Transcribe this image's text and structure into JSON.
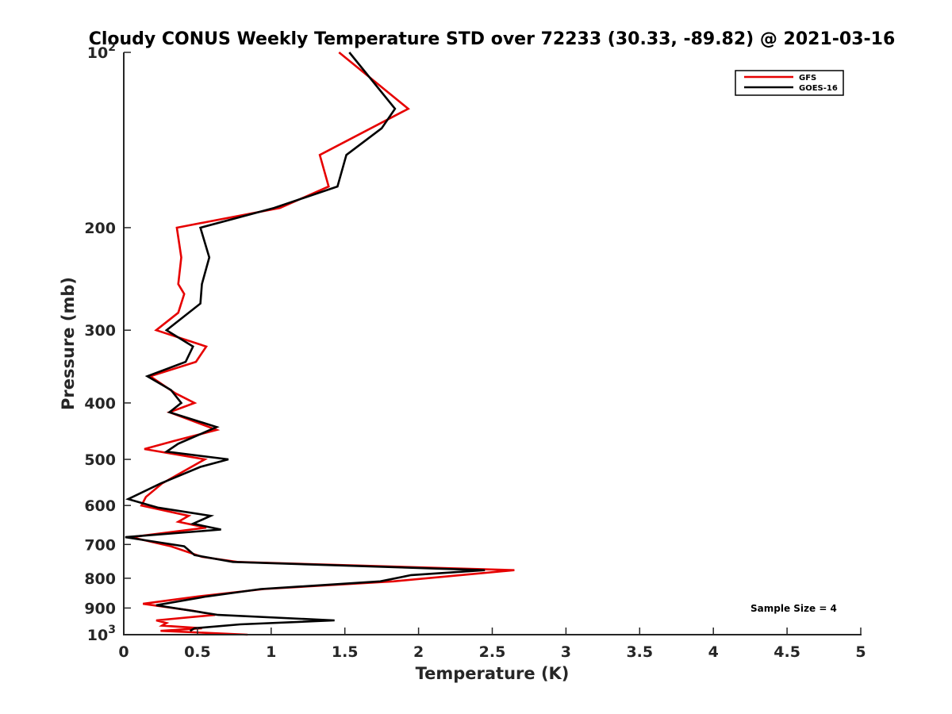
{
  "chart_data": {
    "type": "line",
    "title": "Cloudy CONUS Weekly Temperature STD over 72233 (30.33, -89.82) @ 2021-03-16",
    "xlabel": "Temperature (K)",
    "ylabel": "Pressure (mb)",
    "xlim": [
      0,
      5
    ],
    "ylim": [
      100,
      1000
    ],
    "y_scale": "log",
    "y_reversed": true,
    "x_ticks": [
      0,
      0.5,
      1,
      1.5,
      2,
      2.5,
      3,
      3.5,
      4,
      4.5,
      5
    ],
    "x_tick_labels": [
      "0",
      "0.5",
      "1",
      "1.5",
      "2",
      "2.5",
      "3",
      "3.5",
      "4",
      "4.5",
      "5"
    ],
    "y_ticks": [
      100,
      200,
      300,
      400,
      500,
      600,
      700,
      800,
      900,
      1000
    ],
    "y_tick_labels": [
      "10^2",
      "200",
      "300",
      "400",
      "500",
      "600",
      "700",
      "800",
      "900",
      "10^3"
    ],
    "grid": false,
    "legend_position": "top-right",
    "annotation": "Sample Size = 4",
    "series": [
      {
        "name": "GFS",
        "color": "#e60000",
        "points": [
          [
            1.46,
            100
          ],
          [
            1.93,
            125
          ],
          [
            1.33,
            150
          ],
          [
            1.39,
            170
          ],
          [
            1.06,
            185
          ],
          [
            0.36,
            200
          ],
          [
            0.39,
            225
          ],
          [
            0.37,
            250
          ],
          [
            0.41,
            260
          ],
          [
            0.37,
            280
          ],
          [
            0.22,
            300
          ],
          [
            0.56,
            320
          ],
          [
            0.49,
            340
          ],
          [
            0.18,
            360
          ],
          [
            0.35,
            385
          ],
          [
            0.48,
            400
          ],
          [
            0.31,
            415
          ],
          [
            0.63,
            445
          ],
          [
            0.34,
            465
          ],
          [
            0.14,
            480
          ],
          [
            0.55,
            500
          ],
          [
            0.26,
            550
          ],
          [
            0.15,
            580
          ],
          [
            0.12,
            600
          ],
          [
            0.44,
            625
          ],
          [
            0.37,
            640
          ],
          [
            0.56,
            655
          ],
          [
            0.05,
            680
          ],
          [
            0.32,
            705
          ],
          [
            0.53,
            735
          ],
          [
            0.77,
            750
          ],
          [
            2.65,
            775
          ],
          [
            1.83,
            810
          ],
          [
            0.95,
            835
          ],
          [
            0.5,
            860
          ],
          [
            0.13,
            885
          ],
          [
            0.47,
            910
          ],
          [
            0.62,
            925
          ],
          [
            0.22,
            945
          ],
          [
            0.29,
            955
          ],
          [
            0.26,
            965
          ],
          [
            0.53,
            975
          ],
          [
            0.25,
            985
          ],
          [
            0.84,
            1000
          ]
        ]
      },
      {
        "name": "GOES-16",
        "color": "#000000",
        "points": [
          [
            1.53,
            100
          ],
          [
            1.84,
            125
          ],
          [
            1.75,
            135
          ],
          [
            1.51,
            150
          ],
          [
            1.45,
            170
          ],
          [
            1.02,
            185
          ],
          [
            0.52,
            200
          ],
          [
            0.58,
            225
          ],
          [
            0.53,
            250
          ],
          [
            0.52,
            270
          ],
          [
            0.29,
            300
          ],
          [
            0.47,
            320
          ],
          [
            0.42,
            340
          ],
          [
            0.16,
            360
          ],
          [
            0.32,
            380
          ],
          [
            0.39,
            400
          ],
          [
            0.31,
            415
          ],
          [
            0.63,
            440
          ],
          [
            0.37,
            470
          ],
          [
            0.29,
            485
          ],
          [
            0.71,
            500
          ],
          [
            0.52,
            515
          ],
          [
            0.25,
            550
          ],
          [
            0.03,
            585
          ],
          [
            0.23,
            605
          ],
          [
            0.59,
            625
          ],
          [
            0.47,
            645
          ],
          [
            0.66,
            660
          ],
          [
            0.01,
            680
          ],
          [
            0.41,
            705
          ],
          [
            0.48,
            730
          ],
          [
            0.74,
            750
          ],
          [
            2.45,
            775
          ],
          [
            1.95,
            790
          ],
          [
            1.74,
            810
          ],
          [
            0.93,
            835
          ],
          [
            0.56,
            860
          ],
          [
            0.22,
            890
          ],
          [
            0.64,
            925
          ],
          [
            1.43,
            945
          ],
          [
            0.79,
            960
          ],
          [
            0.48,
            975
          ],
          [
            0.45,
            985
          ]
        ]
      }
    ]
  }
}
